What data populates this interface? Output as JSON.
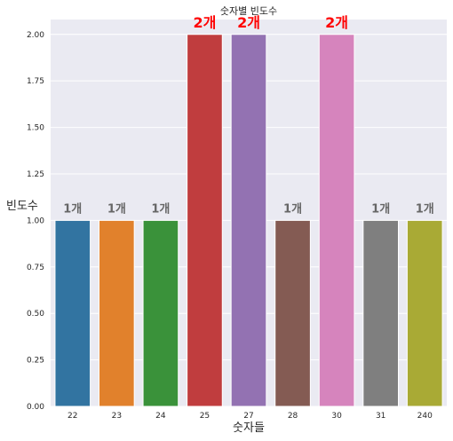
{
  "chart_data": {
    "type": "bar",
    "title": "숫자별 빈도수",
    "xlabel": "숫자들",
    "ylabel": "빈도수",
    "categories": [
      "22",
      "23",
      "24",
      "25",
      "27",
      "28",
      "30",
      "31",
      "240"
    ],
    "values": [
      1,
      1,
      1,
      2,
      2,
      1,
      2,
      1,
      1
    ],
    "data_labels": [
      "1개",
      "1개",
      "1개",
      "2개",
      "2개",
      "1개",
      "2개",
      "1개",
      "1개"
    ],
    "colors": [
      "#3274a1",
      "#e1812c",
      "#3a923a",
      "#c03d3e",
      "#9372b2",
      "#845b53",
      "#d684bd",
      "#7f7f7f",
      "#a9aa35"
    ],
    "label_colors": {
      "1": "#666666",
      "2": "#ff0000"
    },
    "ylim": [
      0,
      2.08
    ],
    "yticks": [
      0.0,
      0.25,
      0.5,
      0.75,
      1.0,
      1.25,
      1.5,
      1.75,
      2.0
    ],
    "ytick_labels": [
      "0.00",
      "0.25",
      "0.50",
      "0.75",
      "1.00",
      "1.25",
      "1.50",
      "1.75",
      "2.00"
    ],
    "grid": true,
    "background": "#eaeaf2"
  }
}
